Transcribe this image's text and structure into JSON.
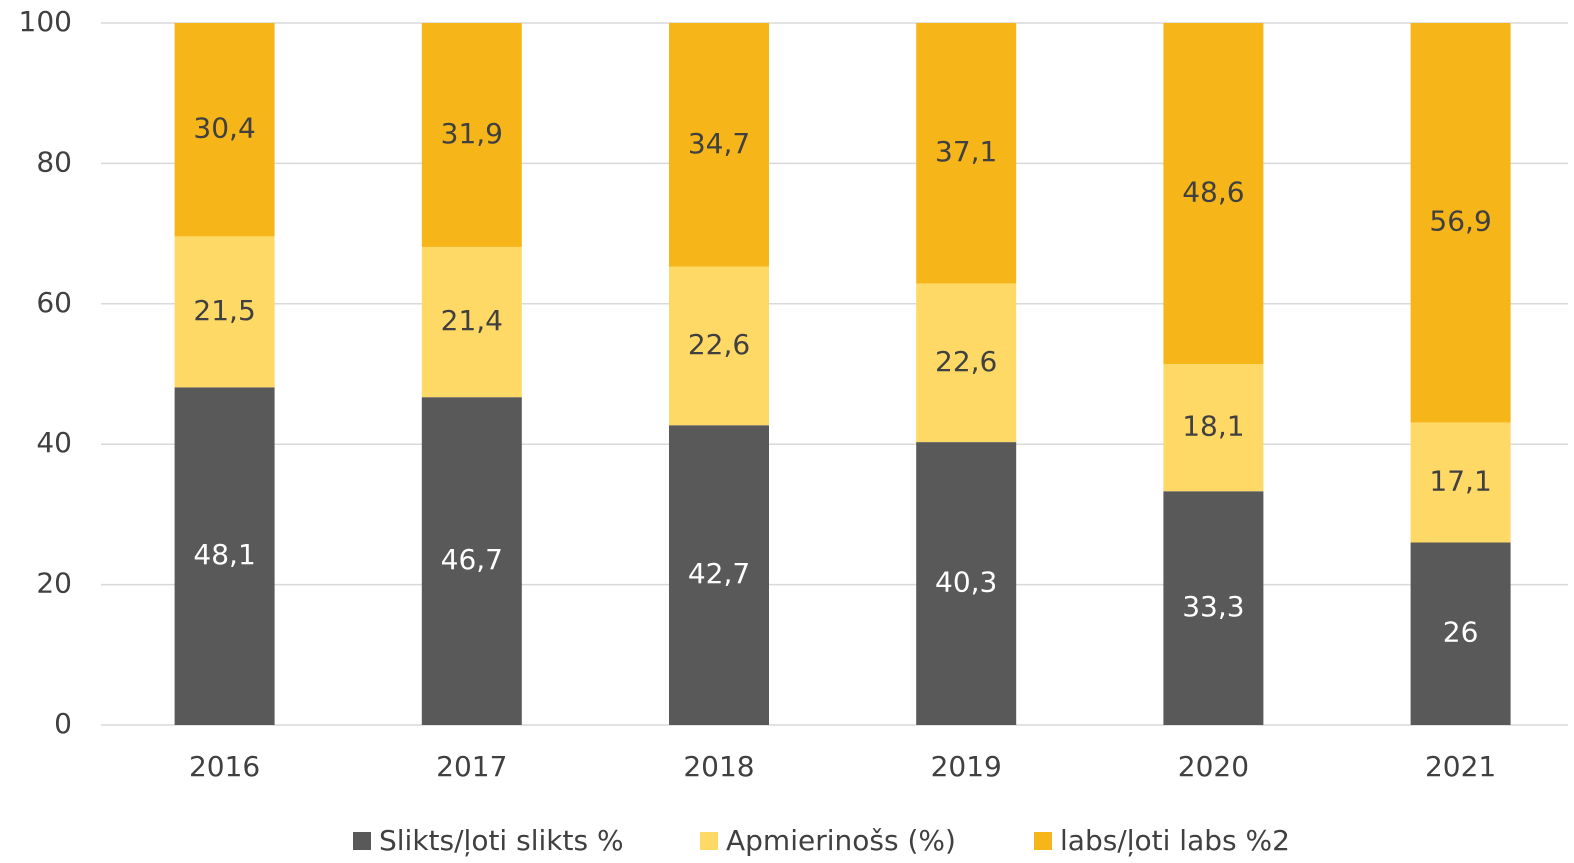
{
  "chart_data": {
    "type": "stacked_bar",
    "categories": [
      "2016",
      "2017",
      "2018",
      "2019",
      "2020",
      "2021"
    ],
    "series": [
      {
        "name": "Slikts/ļoti slikts %",
        "color": "#595959",
        "values": [
          48.1,
          46.7,
          42.7,
          40.3,
          33.3,
          26
        ],
        "value_labels": [
          "48,1",
          "46,7",
          "42,7",
          "40,3",
          "33,3",
          "26"
        ]
      },
      {
        "name": "Apmierinošs (%)",
        "color": "#ffd966",
        "values": [
          21.5,
          21.4,
          22.6,
          22.6,
          18.1,
          17.1
        ],
        "value_labels": [
          "21,5",
          "21,4",
          "22,6",
          "22,6",
          "18,1",
          "17,1"
        ]
      },
      {
        "name": "labs/ļoti labs %2",
        "color": "#f6b619",
        "values": [
          30.4,
          31.9,
          34.7,
          37.1,
          48.6,
          56.9
        ],
        "value_labels": [
          "30,4",
          "31,9",
          "34,7",
          "37,1",
          "48,6",
          "56,9"
        ]
      }
    ],
    "ylim": [
      0,
      100
    ],
    "yticks": [
      0,
      20,
      40,
      60,
      80,
      100
    ],
    "grid": true,
    "legend": "bottom"
  }
}
